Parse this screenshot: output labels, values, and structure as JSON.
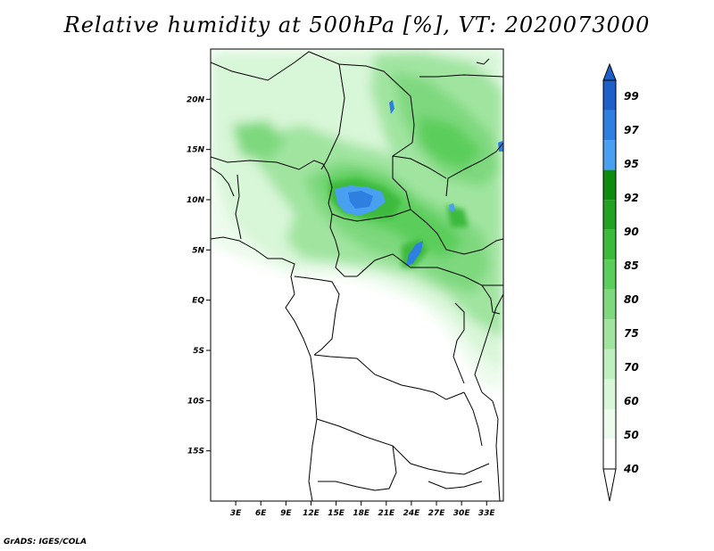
{
  "title": "Relative humidity at 500hPa [%], VT: 2020073000",
  "credit": "GrADS: IGES/COLA",
  "map": {
    "lon_range": [
      0,
      35
    ],
    "lat_range": [
      -20,
      25
    ],
    "lon_ticks": [
      "3E",
      "6E",
      "9E",
      "12E",
      "15E",
      "18E",
      "21E",
      "24E",
      "27E",
      "30E",
      "33E"
    ],
    "lat_ticks": [
      "20N",
      "15N",
      "10N",
      "5N",
      "EQ",
      "5S",
      "10S",
      "15S"
    ]
  },
  "colorbar": {
    "levels": [
      "99",
      "97",
      "95",
      "92",
      "90",
      "85",
      "80",
      "75",
      "70",
      "60",
      "50",
      "40"
    ],
    "colors": [
      "#1e5fc8",
      "#2e7fe0",
      "#4aa0f0",
      "#0e8a0e",
      "#22a222",
      "#3cba3c",
      "#5acd5a",
      "#7ed87e",
      "#a0e4a0",
      "#bfeebf",
      "#d8f6d8",
      "#edfbed",
      "#ffffff"
    ]
  }
}
